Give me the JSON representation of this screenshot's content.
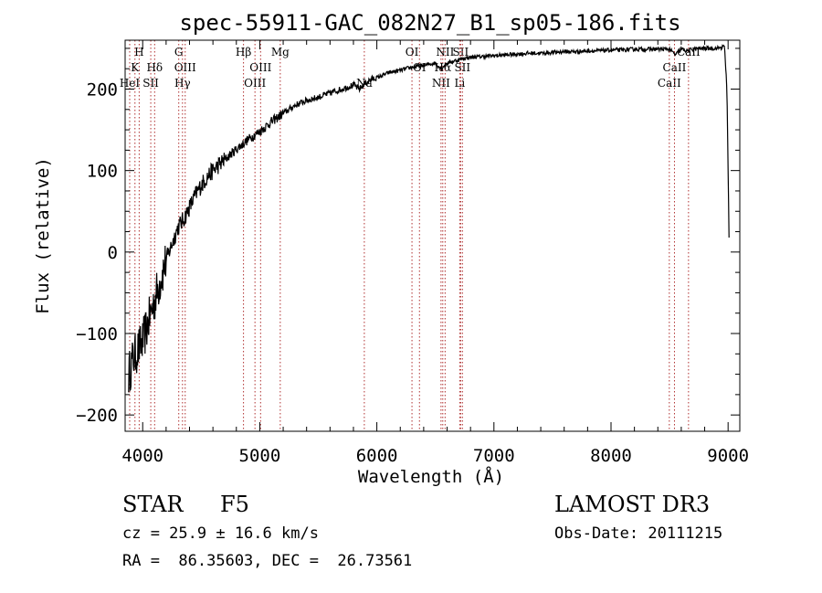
{
  "chart_data": {
    "type": "line",
    "title": "spec-55911-GAC_082N27_B1_sp05-186.fits",
    "xlabel": "Wavelength (Å)",
    "ylabel": "Flux (relative)",
    "xlim": [
      3850,
      9100
    ],
    "ylim": [
      -220,
      260
    ],
    "xticks": [
      4000,
      5000,
      6000,
      7000,
      8000,
      9000
    ],
    "yticks": [
      -200,
      -100,
      0,
      100,
      200
    ],
    "grid": false,
    "series": [
      {
        "x": [
          3880,
          3920,
          3960,
          4000,
          4040,
          4080,
          4120,
          4160,
          4200,
          4250,
          4300,
          4350,
          4400,
          4450,
          4500,
          4550,
          4600,
          4650,
          4700,
          4750,
          4800,
          4850,
          4900,
          4950,
          5000,
          5100,
          5200,
          5300,
          5400,
          5500,
          5600,
          5700,
          5800,
          5850,
          5900,
          5950,
          6000,
          6100,
          6200,
          6250,
          6300,
          6350,
          6400,
          6500,
          6550,
          6600,
          6650,
          6700,
          6750,
          6800,
          6900,
          7000,
          7100,
          7200,
          7300,
          7400,
          7500,
          7600,
          7700,
          7800,
          7900,
          8000,
          8100,
          8200,
          8300,
          8400,
          8500,
          8550,
          8600,
          8650,
          8700,
          8800,
          8900,
          8970,
          8990,
          9000,
          9010
        ],
        "y": [
          -150,
          -130,
          -120,
          -110,
          -90,
          -70,
          -50,
          -30,
          -10,
          10,
          30,
          40,
          55,
          70,
          82,
          92,
          100,
          107,
          113,
          120,
          126,
          132,
          138,
          143,
          148,
          160,
          170,
          180,
          186,
          190,
          195,
          200,
          205,
          200,
          207,
          212,
          214,
          220,
          223,
          225,
          227,
          228,
          229,
          232,
          225,
          232,
          234,
          236,
          238,
          239,
          240,
          241,
          242,
          243,
          244,
          244,
          245,
          246,
          246,
          247,
          247,
          248,
          248,
          249,
          249,
          249,
          249,
          242,
          249,
          247,
          249,
          250,
          250,
          252,
          200,
          100,
          0
        ]
      }
    ],
    "spectral_lines": [
      {
        "name": "H",
        "wavelength": 3970,
        "row": 0
      },
      {
        "name": "K",
        "wavelength": 3934,
        "row": 1
      },
      {
        "name": "HeI",
        "wavelength": 3889,
        "row": 2
      },
      {
        "name": "SII",
        "wavelength": 4069,
        "row": 2
      },
      {
        "name": "Hδ",
        "wavelength": 4102,
        "row": 1
      },
      {
        "name": "G",
        "wavelength": 4308,
        "row": 0
      },
      {
        "name": "OIII",
        "wavelength": 4363,
        "row": 1
      },
      {
        "name": "Hγ",
        "wavelength": 4340,
        "row": 2
      },
      {
        "name": "Hβ",
        "wavelength": 4861,
        "row": 0
      },
      {
        "name": "OIII",
        "wavelength": 4959,
        "row": 2
      },
      {
        "name": "OIII",
        "wavelength": 5007,
        "row": 1
      },
      {
        "name": "Mg",
        "wavelength": 5175,
        "row": 0
      },
      {
        "name": "Na",
        "wavelength": 5893,
        "row": 2
      },
      {
        "name": "OI",
        "wavelength": 6300,
        "row": 0
      },
      {
        "name": "OI",
        "wavelength": 6364,
        "row": 1
      },
      {
        "name": "NII",
        "wavelength": 6548,
        "row": 2
      },
      {
        "name": "Hα",
        "wavelength": 6563,
        "row": 1
      },
      {
        "name": "NII",
        "wavelength": 6583,
        "row": 0
      },
      {
        "name": "SII",
        "wavelength": 6716,
        "row": 0
      },
      {
        "name": "SII",
        "wavelength": 6731,
        "row": 1
      },
      {
        "name": "Li",
        "wavelength": 6708,
        "row": 2
      },
      {
        "name": "CaII",
        "wavelength": 8498,
        "row": 2
      },
      {
        "name": "CaII",
        "wavelength": 8542,
        "row": 1
      },
      {
        "name": "CaII",
        "wavelength": 8662,
        "row": 0
      }
    ]
  },
  "info": {
    "class_label": "STAR",
    "subclass": "F5",
    "survey": "LAMOST DR3",
    "cz": "cz = 25.9 ± 16.6 km/s",
    "obs_date": "Obs-Date: 20111215",
    "radec": "RA =  86.35603, DEC =  26.73561"
  }
}
